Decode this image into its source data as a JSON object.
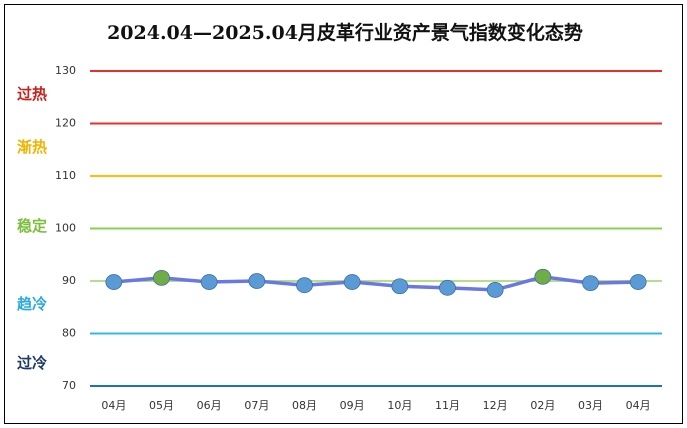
{
  "chart_data": {
    "type": "line",
    "title": "2024.04—2025.04月皮革行业资产景气指数变化态势",
    "categories": [
      "04月",
      "05月",
      "06月",
      "07月",
      "08月",
      "09月",
      "10月",
      "11月",
      "12月",
      "02月",
      "03月",
      "04月"
    ],
    "series": [
      {
        "color": "#6a78e6",
        "values": [
          89.8,
          90.6,
          89.8,
          90.0,
          89.2,
          89.8,
          89.0,
          88.7,
          88.3,
          90.8,
          89.6,
          89.8
        ]
      }
    ],
    "point_colors": [
      "#5b9bd5",
      "#70ad47",
      "#5b9bd5",
      "#5b9bd5",
      "#5b9bd5",
      "#5b9bd5",
      "#5b9bd5",
      "#5b9bd5",
      "#5b9bd5",
      "#70ad47",
      "#5b9bd5",
      "#5b9bd5"
    ],
    "ylim": [
      70,
      130
    ],
    "yticks": [
      70,
      80,
      90,
      100,
      110,
      120,
      130
    ],
    "grid": true,
    "grid_colors": [
      "#1f6fbf",
      "#33b8e8",
      "#b5dd8a",
      "#8fcc55",
      "#ffc000",
      "#e8302a",
      "#e8302a"
    ],
    "zones": [
      {
        "text": "过热",
        "color": "#c8201a"
      },
      {
        "text": "渐热",
        "color": "#f0b400"
      },
      {
        "text": "稳定",
        "color": "#7cbf3f"
      },
      {
        "text": "趋冷",
        "color": "#29a9e0"
      },
      {
        "text": "过冷",
        "color": "#1f3a66"
      }
    ]
  }
}
